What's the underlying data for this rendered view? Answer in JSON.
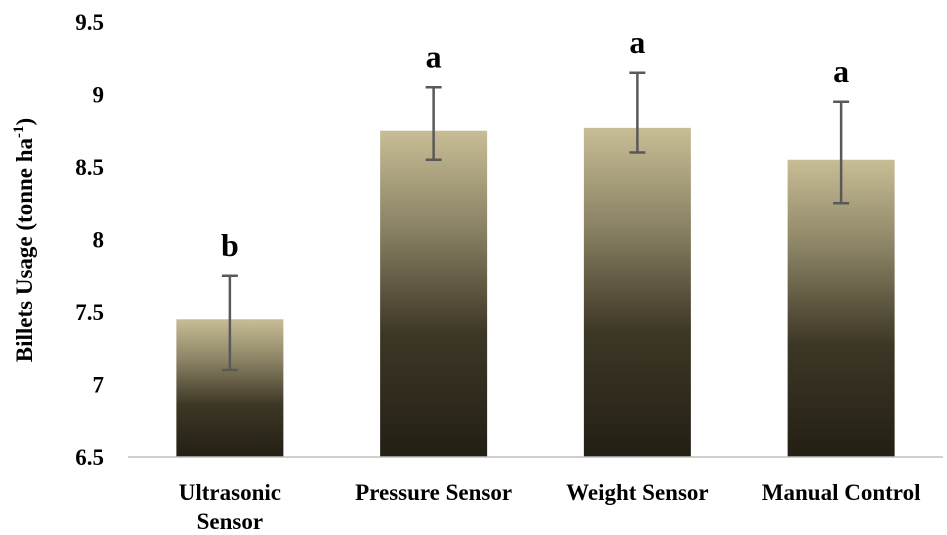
{
  "chart_data": {
    "type": "bar",
    "categories": [
      "Ultrasonic Sensor",
      "Pressure Sensor",
      "Weight Sensor",
      "Manual Control"
    ],
    "category_lines": [
      [
        "Ultrasonic",
        "Sensor"
      ],
      [
        "Pressure Sensor"
      ],
      [
        "Weight Sensor"
      ],
      [
        "Manual Control"
      ]
    ],
    "values": [
      7.45,
      8.75,
      8.77,
      8.55
    ],
    "error_upper": [
      7.75,
      9.05,
      9.15,
      8.95
    ],
    "error_lower": [
      7.1,
      8.55,
      8.6,
      8.25
    ],
    "significance_labels": [
      "b",
      "a",
      "a",
      "a"
    ],
    "ylabel": {
      "main": "Billets Usage (tonne ha",
      "superscript": "-1",
      "close": ")"
    },
    "ylim": [
      6.5,
      9.5
    ],
    "yticks": [
      "6.5",
      "7",
      "7.5",
      "8",
      "8.5",
      "9",
      "9.5"
    ],
    "grid": false,
    "bar_gradient_top": "#c8bd95",
    "bar_gradient_bottom": "#231f14",
    "error_bar_color": "#595959",
    "axis_color": "#bfbfbf"
  }
}
